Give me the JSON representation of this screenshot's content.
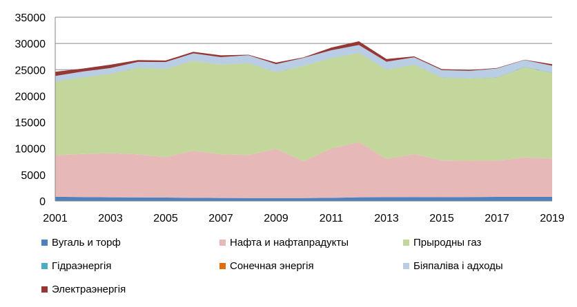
{
  "chart_data": {
    "type": "area",
    "stacked": true,
    "x": [
      2001,
      2002,
      2003,
      2004,
      2005,
      2006,
      2007,
      2008,
      2009,
      2010,
      2011,
      2012,
      2013,
      2014,
      2015,
      2016,
      2017,
      2018,
      2019
    ],
    "x_tick_labels": [
      "2001",
      "2003",
      "2005",
      "2007",
      "2009",
      "2011",
      "2013",
      "2015",
      "2017",
      "2019"
    ],
    "ylim": [
      0,
      35000
    ],
    "y_tick_labels": [
      "0",
      "5000",
      "10000",
      "15000",
      "20000",
      "25000",
      "30000",
      "35000"
    ],
    "grid": "horizontal",
    "legend_position": "bottom",
    "series": [
      {
        "name": "Вугаль и торф",
        "color": "#4F81BD",
        "values": [
          800,
          750,
          700,
          680,
          650,
          600,
          580,
          550,
          550,
          550,
          600,
          700,
          720,
          750,
          720,
          750,
          780,
          800,
          800
        ]
      },
      {
        "name": "Нафта и нафтапрадукты",
        "color": "#E6B9B8",
        "values": [
          7900,
          8200,
          8400,
          8200,
          7700,
          9000,
          8300,
          8200,
          9400,
          7000,
          9400,
          10500,
          7300,
          8200,
          7000,
          6900,
          6900,
          7500,
          7300
        ]
      },
      {
        "name": "Прыродны газ",
        "color": "#C3D69B",
        "values": [
          14100,
          14600,
          15100,
          16500,
          16800,
          17100,
          17100,
          17500,
          14600,
          18200,
          17200,
          17000,
          17000,
          17000,
          15800,
          15700,
          15800,
          17200,
          16300
        ]
      },
      {
        "name": "Гідраэнергія",
        "color": "#4BACC6",
        "values": [
          10,
          10,
          10,
          10,
          10,
          10,
          10,
          10,
          10,
          10,
          10,
          10,
          10,
          20,
          20,
          20,
          40,
          40,
          40
        ]
      },
      {
        "name": "Сонечная энергія",
        "color": "#E46C0A",
        "values": [
          0,
          0,
          0,
          0,
          0,
          0,
          0,
          0,
          0,
          0,
          0,
          0,
          0,
          0,
          0,
          0,
          10,
          10,
          10
        ]
      },
      {
        "name": "Біяпаліва і адходы",
        "color": "#B9CDE5",
        "values": [
          1000,
          1100,
          1100,
          1100,
          1300,
          1400,
          1400,
          1500,
          1500,
          1500,
          1500,
          1500,
          1500,
          1400,
          1400,
          1400,
          1700,
          1300,
          1300
        ]
      },
      {
        "name": "Электраэнергія",
        "color": "#953735",
        "values": [
          800,
          550,
          650,
          350,
          300,
          300,
          350,
          100,
          300,
          100,
          500,
          700,
          500,
          180,
          180,
          160,
          100,
          50,
          300
        ]
      }
    ]
  }
}
